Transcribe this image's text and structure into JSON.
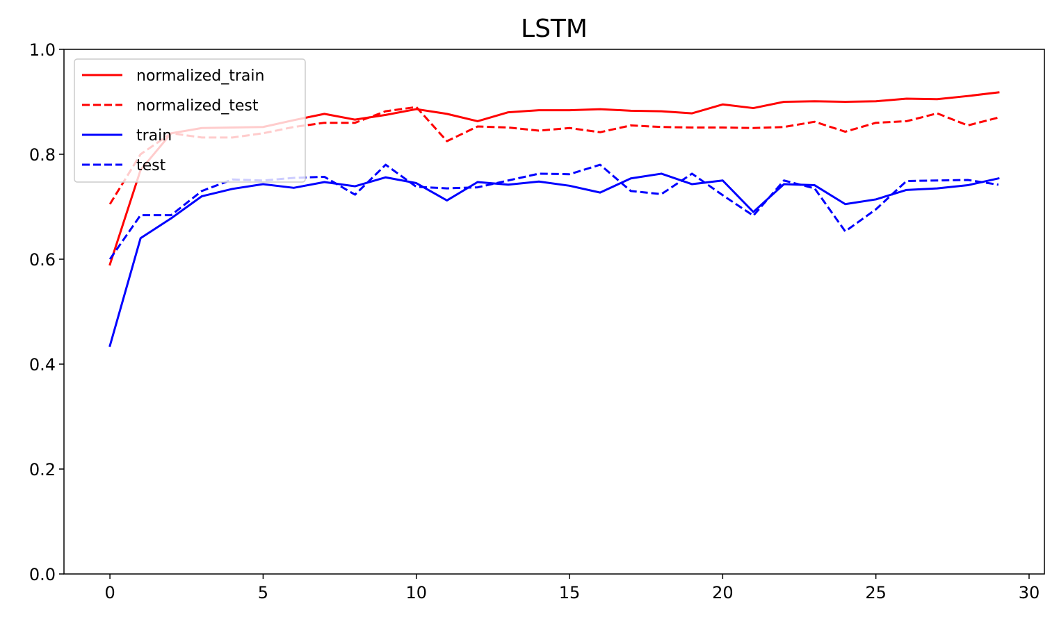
{
  "chart_data": {
    "type": "line",
    "title": "LSTM",
    "xlabel": "",
    "ylabel": "",
    "xlim": [
      -1.5,
      30.5
    ],
    "ylim": [
      0.0,
      1.0
    ],
    "xticks": [
      0,
      5,
      10,
      15,
      20,
      25,
      30
    ],
    "yticks": [
      0.0,
      0.2,
      0.4,
      0.6,
      0.8,
      1.0
    ],
    "xtick_labels": [
      "0",
      "5",
      "10",
      "15",
      "20",
      "25",
      "30"
    ],
    "ytick_labels": [
      "0.0",
      "0.2",
      "0.4",
      "0.6",
      "0.8",
      "1.0"
    ],
    "grid": false,
    "legend_position": "top-left",
    "x": [
      0,
      1,
      2,
      3,
      4,
      5,
      6,
      7,
      8,
      9,
      10,
      11,
      12,
      13,
      14,
      15,
      16,
      17,
      18,
      19,
      20,
      21,
      22,
      23,
      24,
      25,
      26,
      27,
      28,
      29
    ],
    "series": [
      {
        "name": "normalized_train",
        "color": "#ff0000",
        "dash": "solid",
        "values": [
          0.59,
          0.77,
          0.84,
          0.85,
          0.851,
          0.852,
          0.865,
          0.877,
          0.866,
          0.875,
          0.886,
          0.877,
          0.863,
          0.88,
          0.884,
          0.884,
          0.886,
          0.883,
          0.882,
          0.878,
          0.895,
          0.888,
          0.9,
          0.901,
          0.9,
          0.901,
          0.906,
          0.905,
          0.911,
          0.918
        ]
      },
      {
        "name": "normalized_test",
        "color": "#ff0000",
        "dash": "dashed",
        "values": [
          0.705,
          0.8,
          0.84,
          0.832,
          0.832,
          0.84,
          0.852,
          0.86,
          0.86,
          0.882,
          0.89,
          0.825,
          0.853,
          0.851,
          0.845,
          0.85,
          0.842,
          0.855,
          0.852,
          0.851,
          0.851,
          0.85,
          0.852,
          0.862,
          0.843,
          0.86,
          0.863,
          0.878,
          0.855,
          0.87
        ]
      },
      {
        "name": "train",
        "color": "#0000ff",
        "dash": "solid",
        "values": [
          0.435,
          0.64,
          0.678,
          0.72,
          0.734,
          0.743,
          0.736,
          0.747,
          0.739,
          0.756,
          0.745,
          0.712,
          0.747,
          0.742,
          0.748,
          0.74,
          0.727,
          0.754,
          0.763,
          0.743,
          0.75,
          0.69,
          0.743,
          0.741,
          0.705,
          0.714,
          0.732,
          0.735,
          0.741,
          0.754
        ]
      },
      {
        "name": "test",
        "color": "#0000ff",
        "dash": "dashed",
        "values": [
          0.6,
          0.684,
          0.684,
          0.73,
          0.752,
          0.75,
          0.755,
          0.757,
          0.723,
          0.78,
          0.738,
          0.735,
          0.737,
          0.75,
          0.763,
          0.762,
          0.78,
          0.73,
          0.724,
          0.763,
          0.722,
          0.683,
          0.75,
          0.735,
          0.653,
          0.695,
          0.749,
          0.75,
          0.751,
          0.742
        ]
      }
    ]
  }
}
